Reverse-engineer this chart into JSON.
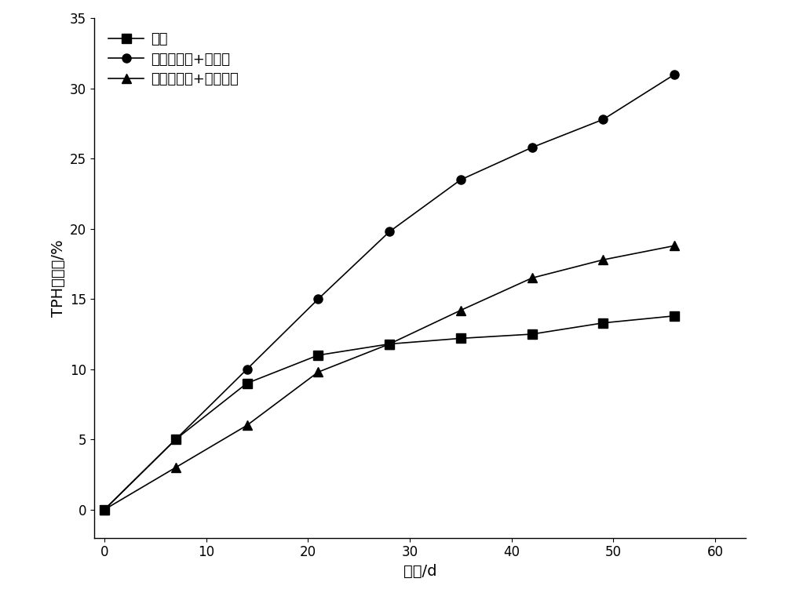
{
  "x": [
    0,
    7,
    14,
    21,
    28,
    35,
    42,
    49,
    56
  ],
  "series1_label": "对照",
  "series1_y": [
    0,
    5.0,
    9.0,
    11.0,
    11.8,
    12.2,
    12.5,
    13.3,
    13.8
  ],
  "series1_marker": "s",
  "series1_linestyle": "-",
  "series2_label": "表面活性剂+白皮松",
  "series2_y": [
    0,
    5.0,
    10.0,
    15.0,
    19.8,
    23.5,
    25.8,
    27.8,
    31.0
  ],
  "series2_marker": "o",
  "series2_linestyle": "-",
  "series3_label": "表面活性剂+东南景天",
  "series3_y": [
    0,
    3.0,
    6.0,
    9.8,
    11.8,
    14.2,
    16.5,
    17.8,
    18.8
  ],
  "series3_marker": "^",
  "series3_linestyle": "-",
  "xlabel": "时间/d",
  "ylabel": "TPH降解率/%",
  "xlim": [
    -1,
    63
  ],
  "ylim": [
    -2,
    35
  ],
  "xticks": [
    0,
    10,
    20,
    30,
    40,
    50,
    60
  ],
  "yticks": [
    0,
    5,
    10,
    15,
    20,
    25,
    30,
    35
  ],
  "line_color": "#000000",
  "markersize": 8,
  "linewidth": 1.2,
  "legend_fontsize": 13,
  "axis_label_fontsize": 14,
  "tick_fontsize": 12
}
